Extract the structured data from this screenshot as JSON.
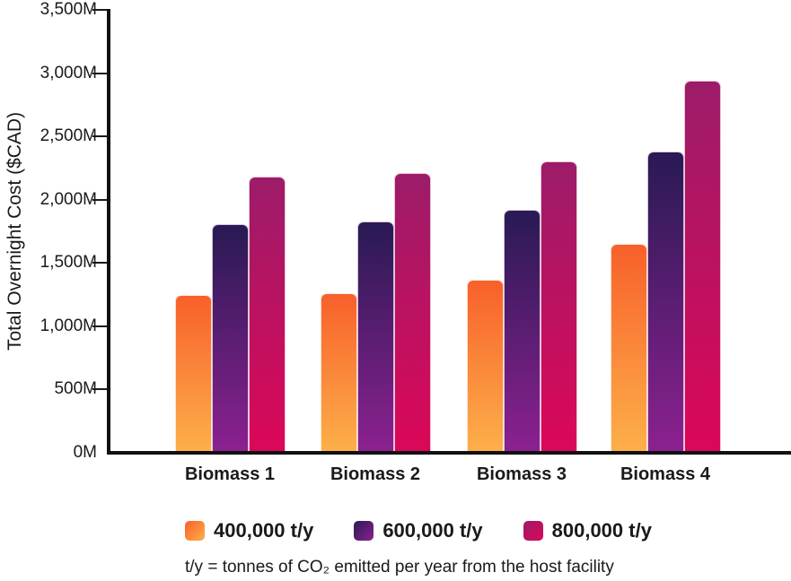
{
  "chart_data": {
    "type": "bar",
    "title": "",
    "categories": [
      "Biomass 1",
      "Biomass 2",
      "Biomass 3",
      "Biomass 4"
    ],
    "series": [
      {
        "name": "400,000 t/y",
        "values": [
          1250,
          1260,
          1370,
          1650
        ],
        "color_top": "#F8602B",
        "color_bottom": "#FDB04A"
      },
      {
        "name": "600,000 t/y",
        "values": [
          1810,
          1830,
          1920,
          2380
        ],
        "color_top": "#291A54",
        "color_bottom": "#8C2190"
      },
      {
        "name": "800,000 t/y",
        "values": [
          2180,
          2210,
          2300,
          2940
        ],
        "color_top": "#9C1C69",
        "color_bottom": "#DC0758"
      }
    ],
    "xlabel": "",
    "ylabel": "Total Overnight Cost ($CAD)",
    "ylim": [
      0,
      3500
    ],
    "yticks": [
      {
        "v": 0,
        "label": "0M"
      },
      {
        "v": 500,
        "label": "500M"
      },
      {
        "v": 1000,
        "label": "1,000M"
      },
      {
        "v": 1500,
        "label": "1,500M"
      },
      {
        "v": 2000,
        "label": "2,000M"
      },
      {
        "v": 2500,
        "label": "2,500M"
      },
      {
        "v": 3000,
        "label": "3,000M"
      },
      {
        "v": 3500,
        "label": "3,500M"
      }
    ],
    "grid": false,
    "legend_position": "bottom"
  },
  "footnote": "t/y = tonnes of CO₂ emitted per year from the host facility",
  "colors": {
    "axis": "#111111",
    "text": "#1a1a1a"
  }
}
